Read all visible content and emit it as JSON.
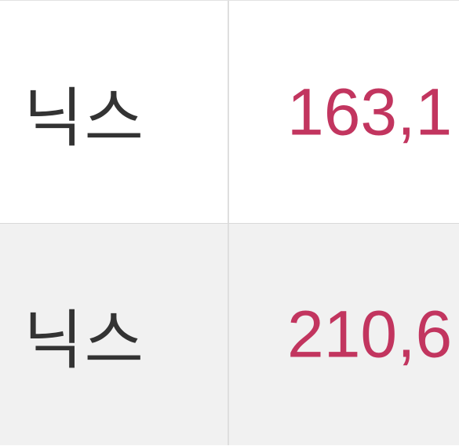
{
  "table": {
    "rows": [
      {
        "name": "닉스",
        "value": "163,1"
      },
      {
        "name": "닉스",
        "value": "210,6"
      }
    ]
  },
  "colors": {
    "value_text": "#c2355f",
    "name_text": "#333333",
    "alt_row_bg": "#f1f1f1",
    "divider": "#dedede"
  }
}
